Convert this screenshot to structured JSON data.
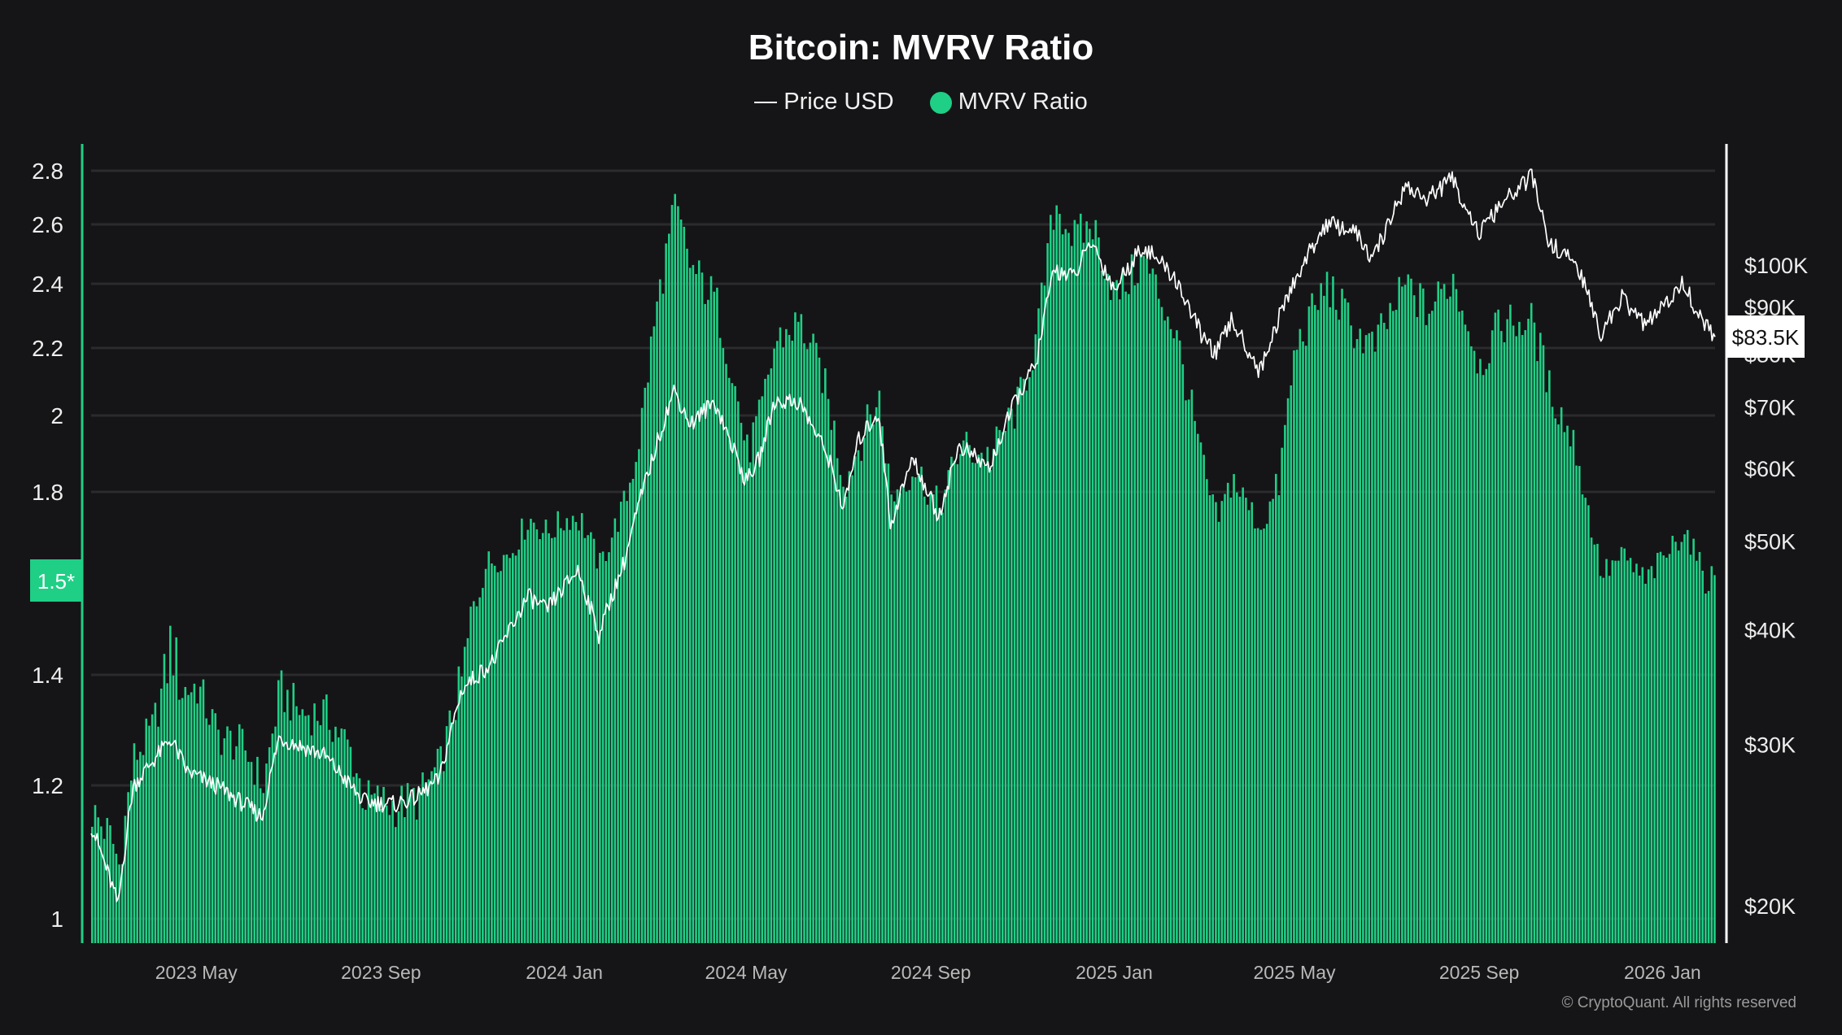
{
  "title": "Bitcoin: MVRV Ratio",
  "legend": {
    "price_label": "Price USD",
    "mvrv_label": "MVRV Ratio"
  },
  "footer": "© CryptoQuant. All rights reserved",
  "colors": {
    "background": "#151517",
    "mvrv_bar": "#1fcf86",
    "price_line": "#ffffff",
    "grid": "#2b2b2e",
    "left_axis_line": "#1fcf86",
    "right_axis_line": "#ffffff"
  },
  "chart_data": {
    "type": "bar",
    "title": "Bitcoin: MVRV Ratio",
    "x_range": [
      "2023-02-20",
      "2026-02-05"
    ],
    "x_ticks": [
      "2023 May",
      "2023 Sep",
      "2024 Jan",
      "2024 May",
      "2024 Sep",
      "2025 Jan",
      "2025 May",
      "2025 Sep",
      "2026 Jan"
    ],
    "y_left": {
      "ticks": [
        "2.8",
        "2.6",
        "2.4",
        "2.2",
        "2",
        "1.8",
        "1.5*",
        "1.4",
        "1.2",
        "1"
      ],
      "range": [
        1,
        2.8
      ],
      "highlight": {
        "label": "1.5*",
        "value": 1.5
      }
    },
    "y_right": {
      "scale": "log",
      "ticks": [
        "$100K",
        "$90K",
        "$80K",
        "$70K",
        "$60K",
        "$50K",
        "$40K",
        "$30K",
        "$20K"
      ],
      "range": [
        19000,
        115000
      ],
      "current_price_label": "$83.5K"
    },
    "grid": true,
    "legend_position": "top-center",
    "series": [
      {
        "name": "MVRV Ratio",
        "type": "bar",
        "points": [
          [
            "2023-02-20",
            1.16
          ],
          [
            "2023-03-05",
            1.12
          ],
          [
            "2023-03-10",
            1.08
          ],
          [
            "2023-03-20",
            1.25
          ],
          [
            "2023-04-01",
            1.3
          ],
          [
            "2023-04-14",
            1.44
          ],
          [
            "2023-04-20",
            1.37
          ],
          [
            "2023-05-01",
            1.38
          ],
          [
            "2023-05-15",
            1.29
          ],
          [
            "2023-06-01",
            1.27
          ],
          [
            "2023-06-14",
            1.2
          ],
          [
            "2023-06-25",
            1.37
          ],
          [
            "2023-07-10",
            1.33
          ],
          [
            "2023-07-25",
            1.33
          ],
          [
            "2023-08-10",
            1.27
          ],
          [
            "2023-08-20",
            1.18
          ],
          [
            "2023-09-10",
            1.17
          ],
          [
            "2023-09-25",
            1.18
          ],
          [
            "2023-10-10",
            1.24
          ],
          [
            "2023-10-25",
            1.4
          ],
          [
            "2023-11-10",
            1.56
          ],
          [
            "2023-11-25",
            1.59
          ],
          [
            "2023-12-08",
            1.71
          ],
          [
            "2023-12-20",
            1.66
          ],
          [
            "2024-01-05",
            1.72
          ],
          [
            "2024-01-12",
            1.7
          ],
          [
            "2024-01-24",
            1.55
          ],
          [
            "2024-02-10",
            1.77
          ],
          [
            "2024-02-20",
            1.96
          ],
          [
            "2024-03-01",
            2.3
          ],
          [
            "2024-03-14",
            2.66
          ],
          [
            "2024-03-25",
            2.45
          ],
          [
            "2024-04-10",
            2.35
          ],
          [
            "2024-04-20",
            2.15
          ],
          [
            "2024-05-01",
            1.9
          ],
          [
            "2024-05-10",
            2.0
          ],
          [
            "2024-05-20",
            2.22
          ],
          [
            "2024-06-05",
            2.28
          ],
          [
            "2024-06-20",
            2.12
          ],
          [
            "2024-07-05",
            1.82
          ],
          [
            "2024-07-15",
            1.93
          ],
          [
            "2024-07-28",
            2.05
          ],
          [
            "2024-08-05",
            1.78
          ],
          [
            "2024-08-20",
            1.87
          ],
          [
            "2024-09-06",
            1.75
          ],
          [
            "2024-09-20",
            1.92
          ],
          [
            "2024-10-10",
            1.89
          ],
          [
            "2024-10-28",
            2.03
          ],
          [
            "2024-11-10",
            2.23
          ],
          [
            "2024-11-22",
            2.68
          ],
          [
            "2024-12-05",
            2.55
          ],
          [
            "2024-12-17",
            2.6
          ],
          [
            "2025-01-01",
            2.36
          ],
          [
            "2025-01-20",
            2.48
          ],
          [
            "2025-02-10",
            2.25
          ],
          [
            "2025-02-28",
            1.87
          ],
          [
            "2025-03-10",
            1.7
          ],
          [
            "2025-03-20",
            1.84
          ],
          [
            "2025-04-08",
            1.68
          ],
          [
            "2025-04-20",
            1.82
          ],
          [
            "2025-05-01",
            2.2
          ],
          [
            "2025-05-22",
            2.4
          ],
          [
            "2025-06-10",
            2.25
          ],
          [
            "2025-06-22",
            2.2
          ],
          [
            "2025-07-14",
            2.4
          ],
          [
            "2025-07-28",
            2.31
          ],
          [
            "2025-08-14",
            2.42
          ],
          [
            "2025-09-01",
            2.15
          ],
          [
            "2025-09-15",
            2.28
          ],
          [
            "2025-10-06",
            2.28
          ],
          [
            "2025-10-17",
            2.08
          ],
          [
            "2025-11-05",
            1.9
          ],
          [
            "2025-11-21",
            1.52
          ],
          [
            "2025-12-05",
            1.58
          ],
          [
            "2025-12-20",
            1.5
          ],
          [
            "2026-01-05",
            1.6
          ],
          [
            "2026-01-15",
            1.68
          ],
          [
            "2026-01-25",
            1.55
          ],
          [
            "2026-02-05",
            1.5
          ]
        ]
      },
      {
        "name": "Price USD",
        "type": "line",
        "points": [
          [
            "2023-02-20",
            24500
          ],
          [
            "2023-03-10",
            20000
          ],
          [
            "2023-03-20",
            27000
          ],
          [
            "2023-04-14",
            30400
          ],
          [
            "2023-04-25",
            28000
          ],
          [
            "2023-05-15",
            27000
          ],
          [
            "2023-06-14",
            25000
          ],
          [
            "2023-06-25",
            30500
          ],
          [
            "2023-07-25",
            29200
          ],
          [
            "2023-08-20",
            26000
          ],
          [
            "2023-09-10",
            25800
          ],
          [
            "2023-09-25",
            26300
          ],
          [
            "2023-10-10",
            27500
          ],
          [
            "2023-10-25",
            34500
          ],
          [
            "2023-11-15",
            37000
          ],
          [
            "2023-12-08",
            43500
          ],
          [
            "2023-12-20",
            42000
          ],
          [
            "2024-01-10",
            46500
          ],
          [
            "2024-01-24",
            39500
          ],
          [
            "2024-02-10",
            47500
          ],
          [
            "2024-02-28",
            61000
          ],
          [
            "2024-03-14",
            73000
          ],
          [
            "2024-03-25",
            67000
          ],
          [
            "2024-04-10",
            71000
          ],
          [
            "2024-04-20",
            64500
          ],
          [
            "2024-05-01",
            58000
          ],
          [
            "2024-05-10",
            61500
          ],
          [
            "2024-05-20",
            71000
          ],
          [
            "2024-06-05",
            71000
          ],
          [
            "2024-06-25",
            61500
          ],
          [
            "2024-07-05",
            54000
          ],
          [
            "2024-07-15",
            64500
          ],
          [
            "2024-07-28",
            69000
          ],
          [
            "2024-08-05",
            52000
          ],
          [
            "2024-08-20",
            61500
          ],
          [
            "2024-09-06",
            53000
          ],
          [
            "2024-09-20",
            63500
          ],
          [
            "2024-10-10",
            60000
          ],
          [
            "2024-10-28",
            71500
          ],
          [
            "2024-11-10",
            78000
          ],
          [
            "2024-11-22",
            99000
          ],
          [
            "2024-12-05",
            97000
          ],
          [
            "2024-12-17",
            106000
          ],
          [
            "2025-01-01",
            94000
          ],
          [
            "2025-01-20",
            105000
          ],
          [
            "2025-02-10",
            97000
          ],
          [
            "2025-02-28",
            84000
          ],
          [
            "2025-03-10",
            80000
          ],
          [
            "2025-03-20",
            87000
          ],
          [
            "2025-04-08",
            76500
          ],
          [
            "2025-04-20",
            87000
          ],
          [
            "2025-05-01",
            96000
          ],
          [
            "2025-05-22",
            111000
          ],
          [
            "2025-06-10",
            109000
          ],
          [
            "2025-06-22",
            101000
          ],
          [
            "2025-07-14",
            122000
          ],
          [
            "2025-07-28",
            118000
          ],
          [
            "2025-08-14",
            124000
          ],
          [
            "2025-09-01",
            108000
          ],
          [
            "2025-09-15",
            116000
          ],
          [
            "2025-10-06",
            125000
          ],
          [
            "2025-10-17",
            106000
          ],
          [
            "2025-11-05",
            100000
          ],
          [
            "2025-11-21",
            84000
          ],
          [
            "2025-12-05",
            92000
          ],
          [
            "2025-12-20",
            86000
          ],
          [
            "2026-01-05",
            91000
          ],
          [
            "2026-01-15",
            96000
          ],
          [
            "2026-01-25",
            88000
          ],
          [
            "2026-02-05",
            83500
          ]
        ]
      }
    ]
  }
}
